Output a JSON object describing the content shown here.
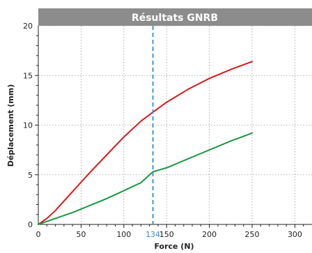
{
  "chart_data": {
    "type": "line",
    "title": "Résultats GNRB",
    "xlabel": "Force (N)",
    "ylabel": "Déplacement (mm)",
    "xlim": [
      0,
      320
    ],
    "ylim": [
      0,
      20
    ],
    "x_ticks": [
      0,
      50,
      100,
      150,
      200,
      250,
      300
    ],
    "y_ticks": [
      0,
      5,
      10,
      15,
      20
    ],
    "grid": true,
    "series": [
      {
        "color": "#d7191c",
        "x": [
          0,
          10,
          20,
          40,
          60,
          80,
          100,
          120,
          134,
          150,
          175,
          200,
          225,
          250
        ],
        "y": [
          0,
          0.6,
          1.4,
          3.3,
          5.2,
          7.0,
          8.8,
          10.4,
          11.3,
          12.3,
          13.6,
          14.7,
          15.6,
          16.4
        ]
      },
      {
        "color": "#1a9641",
        "x": [
          0,
          10,
          20,
          40,
          60,
          80,
          100,
          120,
          134,
          150,
          175,
          200,
          225,
          250
        ],
        "y": [
          0,
          0.3,
          0.6,
          1.2,
          1.9,
          2.6,
          3.4,
          4.2,
          5.3,
          5.7,
          6.6,
          7.5,
          8.4,
          9.2
        ]
      }
    ],
    "marker_line": {
      "x": 134,
      "label": "134",
      "color": "#2b8fd6",
      "style": "dashed"
    }
  }
}
